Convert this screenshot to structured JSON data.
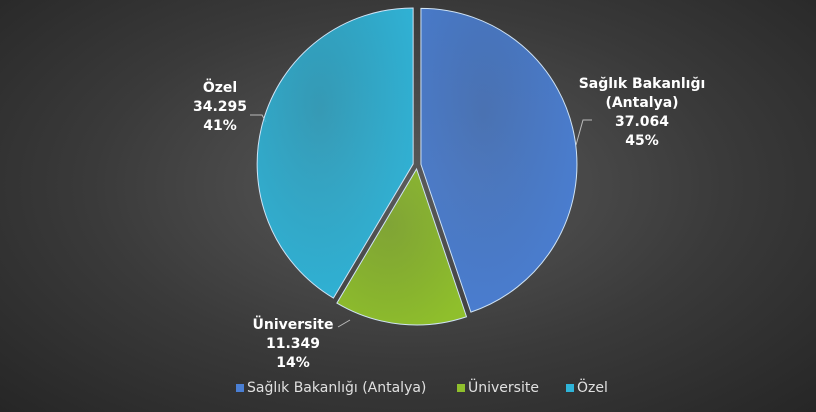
{
  "chart_data": {
    "type": "pie",
    "categories": [
      "Sağlık Bakanlığı (Antalya)",
      "Üniversite",
      "Özel"
    ],
    "values": [
      37064,
      11349,
      34295
    ],
    "value_labels": [
      "37.064",
      "11.349",
      "34.295"
    ],
    "percentages": [
      45,
      14,
      41
    ],
    "percentage_labels": [
      "45%",
      "14%",
      "41%"
    ],
    "colors": [
      "#4a7fd4",
      "#8fbf2c",
      "#2fb4d8"
    ],
    "legend": "bottom"
  }
}
